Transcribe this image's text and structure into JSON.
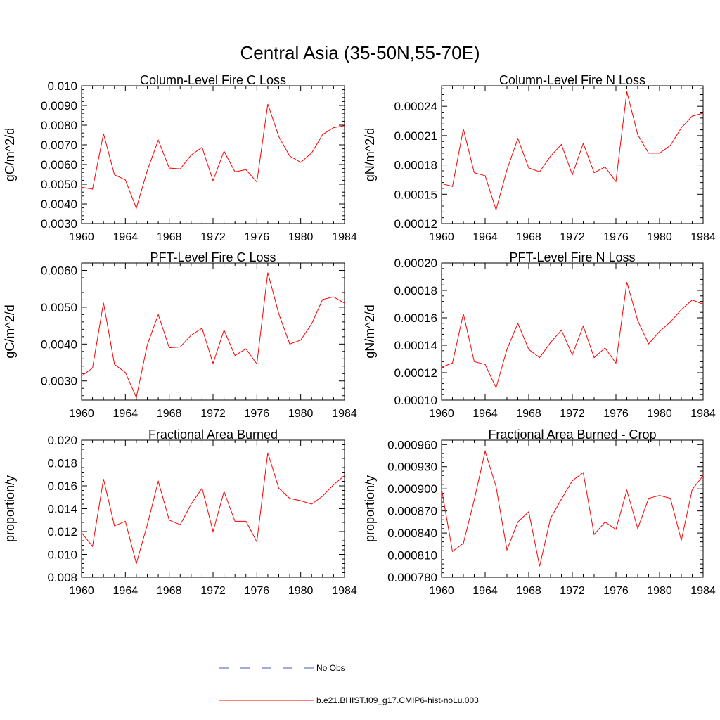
{
  "figure": {
    "title": "Central Asia (35-50N,55-70E)"
  },
  "legend": {
    "items": [
      {
        "label": "No Obs",
        "color": "#4a55b5",
        "dash": true
      },
      {
        "label": "b.e21.BHIST.f09_g17.CMIP6-hist-noLu.003",
        "color": "#ff0000",
        "dash": false
      }
    ]
  },
  "chart_data": [
    {
      "type": "line",
      "title": "Column-Level Fire C Loss",
      "ylabel": "gC/m^2/d",
      "xlabel": "",
      "x": [
        1960,
        1961,
        1962,
        1963,
        1964,
        1965,
        1966,
        1967,
        1968,
        1969,
        1970,
        1971,
        1972,
        1973,
        1974,
        1975,
        1976,
        1977,
        1978,
        1979,
        1980,
        1981,
        1982,
        1983,
        1984
      ],
      "xlim": [
        1960,
        1984
      ],
      "xticks": [
        "1960",
        "1964",
        "1968",
        "1972",
        "1976",
        "1980",
        "1984"
      ],
      "ylim": [
        0.003,
        0.01
      ],
      "yticks": [
        "0.0030",
        "0.0040",
        "0.0050",
        "0.0060",
        "0.0070",
        "0.0080",
        "0.0090",
        "0.010"
      ],
      "yticks_values": [
        0.003,
        0.004,
        0.005,
        0.006,
        0.007,
        0.008,
        0.009,
        0.01
      ],
      "series": [
        {
          "color": "#ff0000",
          "values": [
            0.00485,
            0.00475,
            0.00757,
            0.00548,
            0.00522,
            0.00378,
            0.0057,
            0.00724,
            0.00582,
            0.00578,
            0.00648,
            0.00687,
            0.00518,
            0.00668,
            0.00563,
            0.00574,
            0.00511,
            0.00907,
            0.00742,
            0.00643,
            0.00611,
            0.00659,
            0.00752,
            0.00787,
            0.00797
          ]
        }
      ]
    },
    {
      "type": "line",
      "title": "Column-Level Fire N Loss",
      "ylabel": "gN/m^2/d",
      "xlabel": "",
      "x": [
        1960,
        1961,
        1962,
        1963,
        1964,
        1965,
        1966,
        1967,
        1968,
        1969,
        1970,
        1971,
        1972,
        1973,
        1974,
        1975,
        1976,
        1977,
        1978,
        1979,
        1980,
        1981,
        1982,
        1983,
        1984
      ],
      "xlim": [
        1960,
        1984
      ],
      "xticks": [
        "1960",
        "1964",
        "1968",
        "1972",
        "1976",
        "1980",
        "1984"
      ],
      "ylim": [
        0.00012,
        0.000261
      ],
      "yticks": [
        "0.00012",
        "0.00015",
        "0.00018",
        "0.00021",
        "0.00024"
      ],
      "yticks_values": [
        0.00012,
        0.00015,
        0.00018,
        0.00021,
        0.00024
      ],
      "series": [
        {
          "color": "#ff0000",
          "values": [
            0.000161,
            0.000158,
            0.000217,
            0.000172,
            0.000169,
            0.000134,
            0.000175,
            0.000207,
            0.000177,
            0.000173,
            0.000189,
            0.000201,
            0.00017,
            0.000202,
            0.000172,
            0.000178,
            0.000163,
            0.000255,
            0.000211,
            0.000192,
            0.000192,
            0.0002,
            0.000218,
            0.00023,
            0.000233
          ]
        }
      ]
    },
    {
      "type": "line",
      "title": "PFT-Level Fire C Loss",
      "ylabel": "gC/m^2/d",
      "xlabel": "",
      "x": [
        1960,
        1961,
        1962,
        1963,
        1964,
        1965,
        1966,
        1967,
        1968,
        1969,
        1970,
        1971,
        1972,
        1973,
        1974,
        1975,
        1976,
        1977,
        1978,
        1979,
        1980,
        1981,
        1982,
        1983,
        1984
      ],
      "xlim": [
        1960,
        1984
      ],
      "xticks": [
        "1960",
        "1964",
        "1968",
        "1972",
        "1976",
        "1980",
        "1984"
      ],
      "ylim": [
        0.00248,
        0.0062
      ],
      "yticks": [
        "0.0030",
        "0.0040",
        "0.0050",
        "0.0060"
      ],
      "yticks_values": [
        0.003,
        0.004,
        0.005,
        0.006
      ],
      "series": [
        {
          "color": "#ff0000",
          "values": [
            0.00313,
            0.00335,
            0.00512,
            0.00345,
            0.00323,
            0.00255,
            0.00398,
            0.0048,
            0.0039,
            0.00392,
            0.00424,
            0.00443,
            0.00347,
            0.00438,
            0.00369,
            0.00387,
            0.00346,
            0.00594,
            0.00482,
            0.004,
            0.00411,
            0.00455,
            0.00521,
            0.00528,
            0.00511
          ]
        }
      ]
    },
    {
      "type": "line",
      "title": "PFT-Level Fire N Loss",
      "ylabel": "gN/m^2/d",
      "xlabel": "",
      "x": [
        1960,
        1961,
        1962,
        1963,
        1964,
        1965,
        1966,
        1967,
        1968,
        1969,
        1970,
        1971,
        1972,
        1973,
        1974,
        1975,
        1976,
        1977,
        1978,
        1979,
        1980,
        1981,
        1982,
        1983,
        1984
      ],
      "xlim": [
        1960,
        1984
      ],
      "xticks": [
        "1960",
        "1964",
        "1968",
        "1972",
        "1976",
        "1980",
        "1984"
      ],
      "ylim": [
        0.0001,
        0.0002
      ],
      "yticks": [
        "0.00010",
        "0.00012",
        "0.00014",
        "0.00016",
        "0.00018",
        "0.00020"
      ],
      "yticks_values": [
        0.0001,
        0.00012,
        0.00014,
        0.00016,
        0.00018,
        0.0002
      ],
      "series": [
        {
          "color": "#ff0000",
          "values": [
            0.000124,
            0.000127,
            0.000163,
            0.000128,
            0.000126,
            0.000109,
            0.000137,
            0.000156,
            0.000137,
            0.000131,
            0.000142,
            0.000151,
            0.000133,
            0.000154,
            0.000131,
            0.000138,
            0.000127,
            0.000186,
            0.000158,
            0.000141,
            0.00015,
            0.000157,
            0.000166,
            0.000173,
            0.00017
          ]
        }
      ]
    },
    {
      "type": "line",
      "title": "Fractional Area Burned",
      "ylabel": "proportion/y",
      "xlabel": "",
      "x": [
        1960,
        1961,
        1962,
        1963,
        1964,
        1965,
        1966,
        1967,
        1968,
        1969,
        1970,
        1971,
        1972,
        1973,
        1974,
        1975,
        1976,
        1977,
        1978,
        1979,
        1980,
        1981,
        1982,
        1983,
        1984
      ],
      "xlim": [
        1960,
        1984
      ],
      "xticks": [
        "1960",
        "1964",
        "1968",
        "1972",
        "1976",
        "1980",
        "1984"
      ],
      "ylim": [
        0.008,
        0.02
      ],
      "yticks": [
        "0.008",
        "0.010",
        "0.012",
        "0.014",
        "0.016",
        "0.018",
        "0.020"
      ],
      "yticks_values": [
        0.008,
        0.01,
        0.012,
        0.014,
        0.016,
        0.018,
        0.02
      ],
      "series": [
        {
          "color": "#ff0000",
          "values": [
            0.0119,
            0.0107,
            0.0166,
            0.0125,
            0.0129,
            0.0092,
            0.0126,
            0.0164,
            0.013,
            0.0126,
            0.0144,
            0.0158,
            0.012,
            0.0155,
            0.0129,
            0.0129,
            0.0111,
            0.0189,
            0.0158,
            0.0149,
            0.0147,
            0.0144,
            0.0151,
            0.0161,
            0.0169
          ]
        }
      ]
    },
    {
      "type": "line",
      "title": "Fractional Area Burned - Crop",
      "ylabel": "proportion/y",
      "xlabel": "",
      "x": [
        1960,
        1961,
        1962,
        1963,
        1964,
        1965,
        1966,
        1967,
        1968,
        1969,
        1970,
        1971,
        1972,
        1973,
        1974,
        1975,
        1976,
        1977,
        1978,
        1979,
        1980,
        1981,
        1982,
        1983,
        1984
      ],
      "xlim": [
        1960,
        1984
      ],
      "xticks": [
        "1960",
        "1964",
        "1968",
        "1972",
        "1976",
        "1980",
        "1984"
      ],
      "ylim": [
        0.00078,
        0.000966
      ],
      "yticks": [
        "0.000780",
        "0.000810",
        "0.000840",
        "0.000870",
        "0.000900",
        "0.000930",
        "0.000960"
      ],
      "yticks_values": [
        0.00078,
        0.00081,
        0.00084,
        0.00087,
        0.0009,
        0.00093,
        0.00096
      ],
      "series": [
        {
          "color": "#ff0000",
          "values": [
            0.0009,
            0.000815,
            0.000826,
            0.000885,
            0.000951,
            0.000903,
            0.000817,
            0.000855,
            0.000869,
            0.000795,
            0.00086,
            0.000886,
            0.000911,
            0.000922,
            0.000838,
            0.000855,
            0.000845,
            0.000898,
            0.000846,
            0.000887,
            0.000891,
            0.000887,
            0.00083,
            0.000899,
            0.000918
          ]
        }
      ]
    }
  ]
}
